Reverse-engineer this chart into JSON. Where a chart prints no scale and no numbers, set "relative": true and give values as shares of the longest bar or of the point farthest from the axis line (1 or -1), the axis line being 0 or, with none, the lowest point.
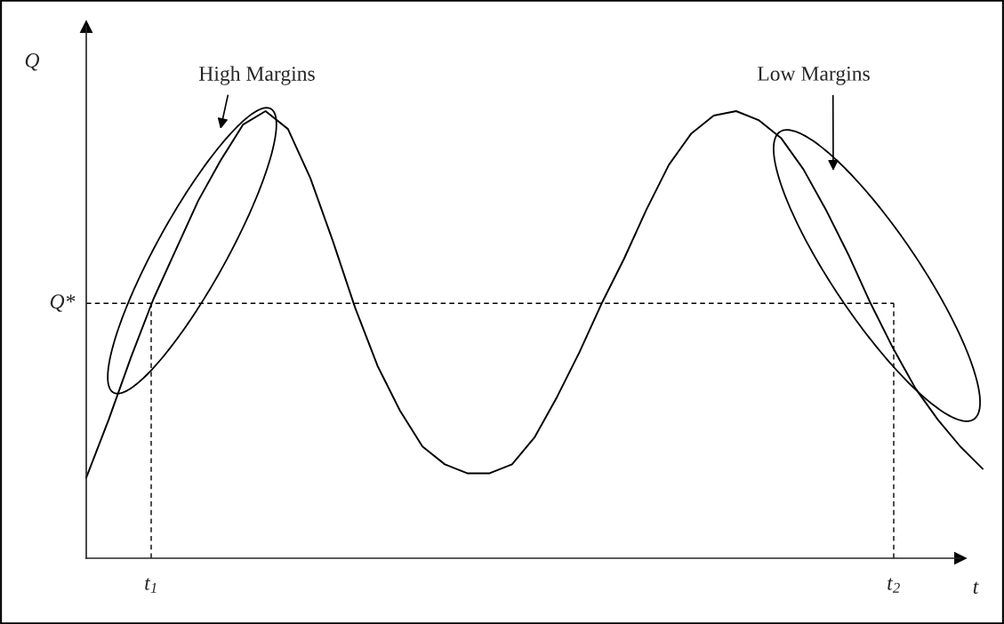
{
  "chart_data": {
    "type": "line",
    "relative": true,
    "xlabel": "t",
    "ylabel": "Q",
    "categories": [
      null,
      null,
      null,
      null,
      null,
      null,
      null,
      null,
      null,
      null,
      null,
      null,
      null,
      null,
      null,
      null,
      null,
      null,
      null,
      null,
      null,
      null,
      null,
      null,
      null,
      null,
      null,
      null,
      null,
      null,
      null,
      null,
      null,
      null,
      null,
      null,
      null,
      null,
      null,
      null,
      null
    ],
    "series": [
      {
        "color": "#000000",
        "values": [
          0.18,
          0.31,
          0.45,
          0.58,
          0.69,
          0.8,
          0.89,
          0.97,
          1,
          0.96,
          0.85,
          0.71,
          0.56,
          0.43,
          0.33,
          0.25,
          0.21,
          0.19,
          0.19,
          0.21,
          0.27,
          0.36,
          0.46,
          0.57,
          0.67,
          0.78,
          0.88,
          0.95,
          0.99,
          1,
          0.98,
          0.94,
          0.87,
          0.78,
          0.68,
          0.57,
          0.47,
          0.38,
          0.31,
          0.25,
          0.2
        ]
      }
    ],
    "ref_lines": [
      {
        "axis": "y",
        "value": 0.57,
        "label": "Q*",
        "line_style": "dashed",
        "color": "#000000"
      }
    ],
    "annotations": [
      "High Margins",
      "Low Margins",
      "t$_{1}$",
      "t$_{2}$"
    ]
  }
}
